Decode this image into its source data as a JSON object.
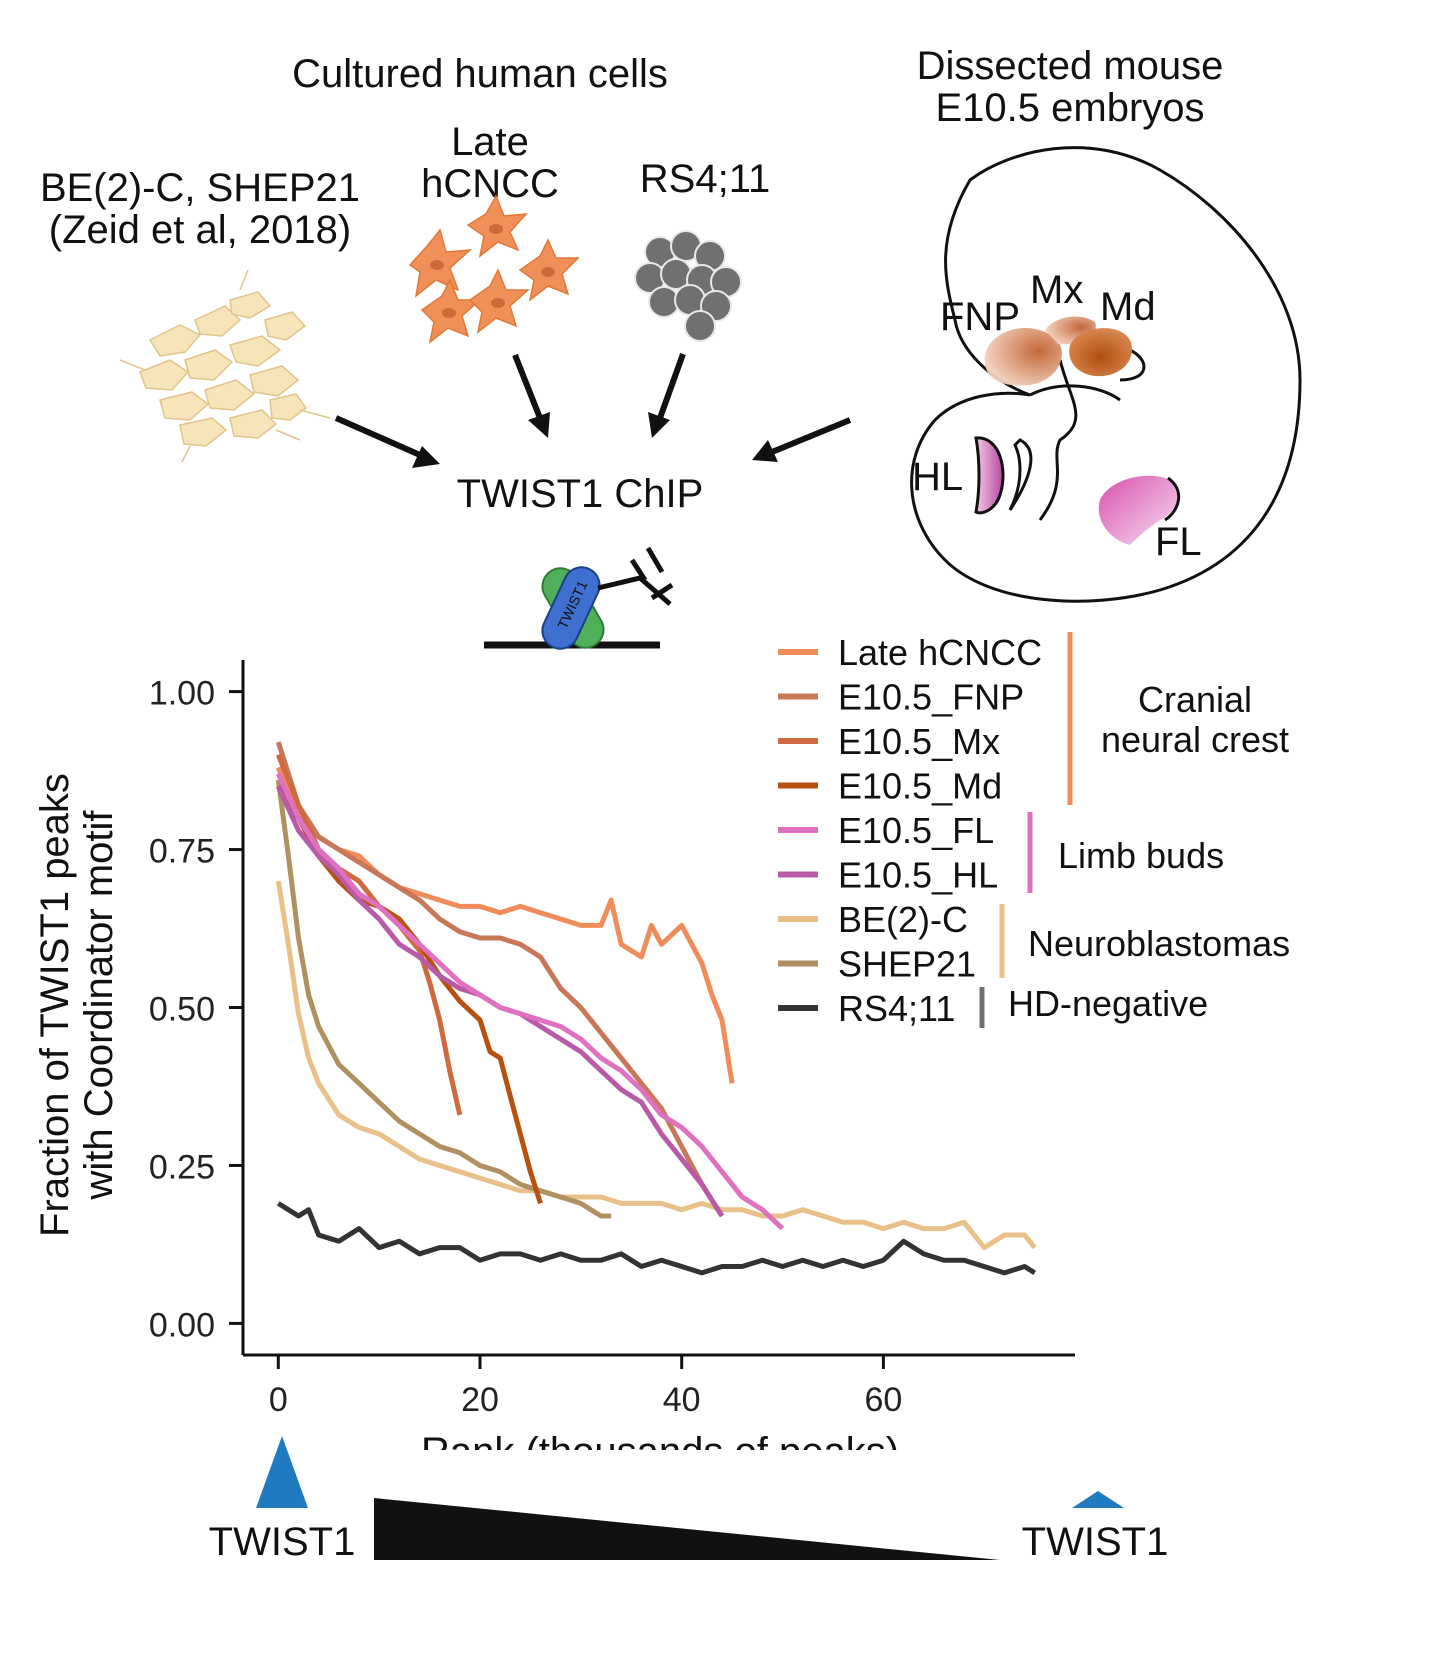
{
  "header": {
    "cultured_title": "Cultured human cells",
    "dissected_title_line1": "Dissected mouse",
    "dissected_title_line2": "E10.5 embryos"
  },
  "sources": {
    "be2c_line1": "BE(2)-C, SHEP21",
    "be2c_line2": "(Zeid et al, 2018)",
    "hcncc_line1": "Late",
    "hcncc_line2": "hCNCC",
    "rs4": "RS4;11"
  },
  "center": {
    "chip_label": "TWIST1 ChIP",
    "protein_label": "TWIST1"
  },
  "embryo": {
    "regions": [
      "FNP",
      "Mx",
      "Md",
      "HL",
      "FL"
    ]
  },
  "colors": {
    "cranial_bar": "#f08c5a",
    "limb_bar": "#e070c0",
    "neuro_bar": "#e8c088",
    "hdneg_bar": "#707070",
    "triangle_blue": "#1f7abf"
  },
  "bottom": {
    "twist_left": "TWIST1",
    "twist_right": "TWIST1"
  },
  "legend": {
    "groups": [
      {
        "label_lines": [
          "Cranial",
          "neural crest"
        ],
        "color": "#f08c5a"
      },
      {
        "label_lines": [
          "Limb buds"
        ],
        "color": "#e070c0"
      },
      {
        "label_lines": [
          "Neuroblastomas"
        ],
        "color": "#e8c088"
      },
      {
        "label_lines": [
          "HD-negative"
        ],
        "color": "#707070"
      }
    ]
  },
  "chart_data": {
    "type": "line",
    "xlabel": "Rank (thousands of peaks)",
    "ylabel_line1": "Fraction of TWIST1 peaks",
    "ylabel_line2": "with Coordinator motif",
    "xlim": [
      -3.5,
      79
    ],
    "ylim": [
      -0.05,
      1.05
    ],
    "xticks": [
      "0",
      "20",
      "40",
      "60"
    ],
    "xtick_values": [
      0,
      20,
      40,
      60
    ],
    "yticks": [
      "0.00",
      "0.25",
      "0.50",
      "0.75",
      "1.00"
    ],
    "ytick_values": [
      0,
      0.25,
      0.5,
      0.75,
      1.0
    ],
    "series": [
      {
        "name": "Late hCNCC",
        "color": "#f08c5a",
        "x": [
          0,
          2,
          4,
          6,
          8,
          10,
          12,
          14,
          16,
          18,
          20,
          22,
          24,
          26,
          28,
          30,
          32,
          33,
          34,
          36,
          37,
          38,
          40,
          42,
          43,
          44,
          45
        ],
        "y": [
          0.88,
          0.8,
          0.77,
          0.75,
          0.74,
          0.71,
          0.69,
          0.68,
          0.67,
          0.66,
          0.66,
          0.65,
          0.66,
          0.65,
          0.64,
          0.63,
          0.63,
          0.67,
          0.6,
          0.58,
          0.63,
          0.6,
          0.63,
          0.57,
          0.52,
          0.48,
          0.38
        ]
      },
      {
        "name": "E10.5_FNP",
        "color": "#c87858",
        "x": [
          0,
          2,
          4,
          6,
          8,
          10,
          12,
          14,
          16,
          18,
          20,
          22,
          24,
          26,
          28,
          30,
          32,
          34,
          36,
          38,
          40,
          42,
          44
        ],
        "y": [
          0.92,
          0.82,
          0.77,
          0.75,
          0.73,
          0.71,
          0.69,
          0.67,
          0.64,
          0.62,
          0.61,
          0.61,
          0.6,
          0.58,
          0.53,
          0.5,
          0.46,
          0.42,
          0.38,
          0.34,
          0.28,
          0.22,
          0.17
        ]
      },
      {
        "name": "E10.5_Mx",
        "color": "#d06840",
        "x": [
          0,
          2,
          4,
          6,
          8,
          10,
          12,
          14,
          15,
          16,
          17,
          18
        ],
        "y": [
          0.9,
          0.82,
          0.75,
          0.72,
          0.7,
          0.66,
          0.63,
          0.59,
          0.54,
          0.48,
          0.4,
          0.33
        ]
      },
      {
        "name": "E10.5_Md",
        "color": "#b85010",
        "x": [
          0,
          2,
          4,
          6,
          8,
          10,
          12,
          14,
          16,
          18,
          20,
          21,
          22,
          23,
          24,
          25,
          26
        ],
        "y": [
          0.85,
          0.8,
          0.74,
          0.7,
          0.67,
          0.66,
          0.64,
          0.6,
          0.55,
          0.51,
          0.48,
          0.43,
          0.42,
          0.36,
          0.3,
          0.24,
          0.19
        ]
      },
      {
        "name": "E10.5_FL",
        "color": "#e070c0",
        "x": [
          0,
          2,
          4,
          6,
          8,
          10,
          12,
          14,
          16,
          18,
          20,
          22,
          24,
          26,
          28,
          30,
          32,
          34,
          36,
          38,
          40,
          42,
          44,
          46,
          48,
          50
        ],
        "y": [
          0.87,
          0.8,
          0.75,
          0.72,
          0.68,
          0.66,
          0.63,
          0.6,
          0.57,
          0.54,
          0.52,
          0.5,
          0.49,
          0.48,
          0.47,
          0.45,
          0.42,
          0.4,
          0.37,
          0.33,
          0.31,
          0.28,
          0.24,
          0.2,
          0.18,
          0.15
        ]
      },
      {
        "name": "E10.5_HL",
        "color": "#b85aa8",
        "x": [
          0,
          2,
          4,
          6,
          8,
          10,
          12,
          14,
          16,
          18,
          20,
          22,
          24,
          26,
          28,
          30,
          32,
          34,
          36,
          38,
          40,
          42,
          44
        ],
        "y": [
          0.85,
          0.78,
          0.74,
          0.71,
          0.67,
          0.64,
          0.6,
          0.58,
          0.55,
          0.53,
          0.52,
          0.5,
          0.49,
          0.47,
          0.45,
          0.43,
          0.4,
          0.37,
          0.35,
          0.3,
          0.26,
          0.22,
          0.17
        ]
      },
      {
        "name": "BE(2)-C",
        "color": "#e8c088",
        "x": [
          0,
          1,
          2,
          3,
          4,
          6,
          8,
          10,
          12,
          14,
          16,
          18,
          20,
          22,
          24,
          26,
          28,
          30,
          32,
          34,
          36,
          38,
          40,
          42,
          44,
          46,
          48,
          50,
          52,
          54,
          56,
          58,
          60,
          62,
          64,
          66,
          68,
          70,
          72,
          74,
          75
        ],
        "y": [
          0.7,
          0.6,
          0.49,
          0.42,
          0.38,
          0.33,
          0.31,
          0.3,
          0.28,
          0.26,
          0.25,
          0.24,
          0.23,
          0.22,
          0.21,
          0.21,
          0.2,
          0.2,
          0.2,
          0.19,
          0.19,
          0.19,
          0.18,
          0.19,
          0.18,
          0.18,
          0.17,
          0.17,
          0.18,
          0.17,
          0.16,
          0.16,
          0.15,
          0.16,
          0.15,
          0.15,
          0.16,
          0.12,
          0.14,
          0.14,
          0.12
        ]
      },
      {
        "name": "SHEP21",
        "color": "#b09060",
        "x": [
          0,
          1,
          2,
          3,
          4,
          6,
          8,
          10,
          12,
          14,
          16,
          18,
          20,
          22,
          24,
          26,
          28,
          30,
          32,
          33
        ],
        "y": [
          0.86,
          0.74,
          0.61,
          0.52,
          0.47,
          0.41,
          0.38,
          0.35,
          0.32,
          0.3,
          0.28,
          0.27,
          0.25,
          0.24,
          0.22,
          0.21,
          0.2,
          0.19,
          0.17,
          0.17
        ]
      },
      {
        "name": "RS4;11",
        "color": "#333333",
        "x": [
          0,
          2,
          3,
          4,
          6,
          8,
          10,
          12,
          14,
          16,
          18,
          20,
          22,
          24,
          26,
          28,
          30,
          32,
          34,
          36,
          38,
          40,
          42,
          44,
          46,
          48,
          50,
          52,
          54,
          56,
          58,
          60,
          62,
          64,
          66,
          68,
          70,
          72,
          74,
          75
        ],
        "y": [
          0.19,
          0.17,
          0.18,
          0.14,
          0.13,
          0.15,
          0.12,
          0.13,
          0.11,
          0.12,
          0.12,
          0.1,
          0.11,
          0.11,
          0.1,
          0.11,
          0.1,
          0.1,
          0.11,
          0.09,
          0.1,
          0.09,
          0.08,
          0.09,
          0.09,
          0.1,
          0.09,
          0.1,
          0.09,
          0.1,
          0.09,
          0.1,
          0.13,
          0.11,
          0.1,
          0.1,
          0.09,
          0.08,
          0.09,
          0.08
        ]
      }
    ]
  }
}
